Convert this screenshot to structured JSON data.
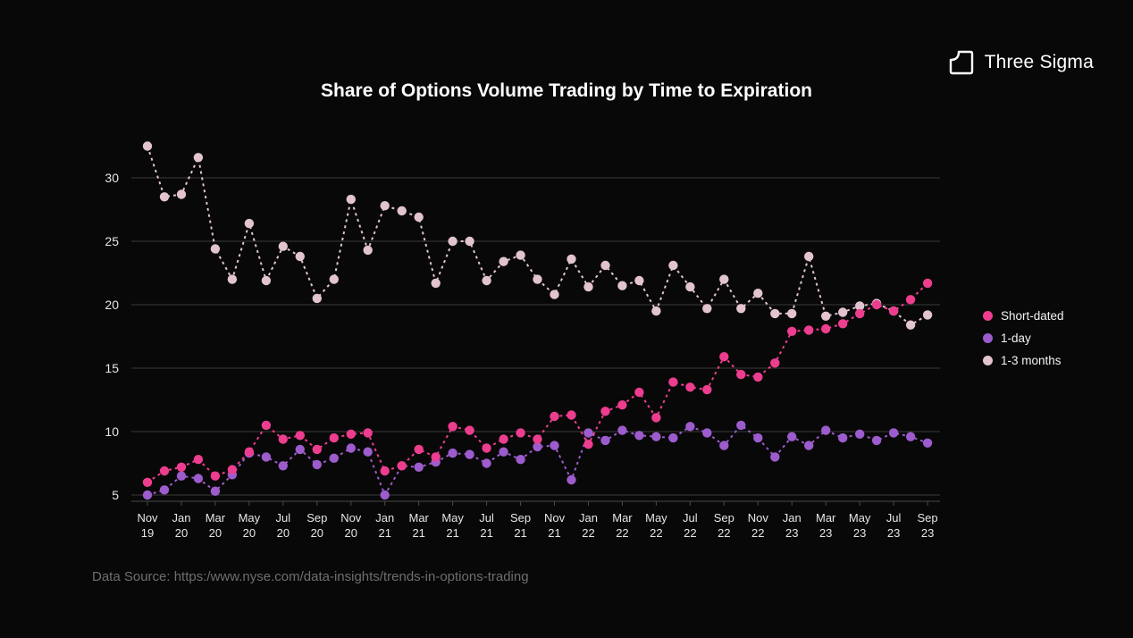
{
  "page": {
    "background": "#080808"
  },
  "logo": {
    "text": "Three Sigma"
  },
  "title": "Share of Options Volume Trading by Time to Expiration",
  "footer": {
    "text": "Data Source: https:/www.nyse.com/data-insights/trends-in-options-trading"
  },
  "colors": {
    "short_dated": "#ed3d8f",
    "one_day": "#9d5ccd",
    "one_three_months": "#e2c3d0",
    "grid": "#3a3a3a",
    "axis": "#4a4a4a",
    "tick_text": "#e6e6e6"
  },
  "chart_data": {
    "type": "line",
    "title": "Share of Options Volume Trading by Time to Expiration",
    "line_style": "dashed",
    "grid": "horizontal",
    "legend_position": "right",
    "ylim": [
      4.3,
      33.5
    ],
    "yticks": [
      5,
      10,
      15,
      20,
      25,
      30
    ],
    "xtick_every": 2,
    "x": [
      "Nov 19",
      "Dec 19",
      "Jan 20",
      "Feb 20",
      "Mar 20",
      "Apr 20",
      "May 20",
      "Jun 20",
      "Jul 20",
      "Aug 20",
      "Sep 20",
      "Oct 20",
      "Nov 20",
      "Dec 20",
      "Jan 21",
      "Feb 21",
      "Mar 21",
      "Apr 21",
      "May 21",
      "Jun 21",
      "Jul 21",
      "Aug 21",
      "Sep 21",
      "Oct 21",
      "Nov 21",
      "Dec 21",
      "Jan 22",
      "Feb 22",
      "Mar 22",
      "Apr 22",
      "May 22",
      "Jun 22",
      "Jul 22",
      "Aug 22",
      "Sep 22",
      "Oct 22",
      "Nov 22",
      "Dec 22",
      "Jan 23",
      "Feb 23",
      "Mar 23",
      "Apr 23",
      "May 23",
      "Jun 23",
      "Jul 23",
      "Aug 23",
      "Sep 23"
    ],
    "series": [
      {
        "name": "Short-dated",
        "color": "#ed3d8f",
        "values": [
          6.0,
          6.9,
          7.2,
          7.8,
          6.5,
          7.0,
          8.4,
          10.5,
          9.4,
          9.7,
          8.6,
          9.5,
          9.8,
          9.9,
          6.9,
          7.3,
          8.6,
          8.0,
          10.4,
          10.1,
          8.7,
          9.4,
          9.9,
          9.4,
          11.2,
          11.3,
          9.0,
          11.6,
          12.1,
          13.1,
          11.1,
          13.9,
          13.5,
          13.3,
          15.9,
          14.5,
          14.3,
          15.4,
          17.9,
          18.0,
          18.1,
          18.5,
          19.3,
          20.0,
          19.5,
          20.4,
          21.7
        ]
      },
      {
        "name": "1-day",
        "color": "#9d5ccd",
        "values": [
          5.0,
          5.4,
          6.5,
          6.3,
          5.3,
          6.6,
          8.3,
          8.0,
          7.3,
          8.6,
          7.4,
          7.9,
          8.7,
          8.4,
          5.0,
          7.3,
          7.2,
          7.6,
          8.3,
          8.2,
          7.5,
          8.4,
          7.8,
          8.8,
          8.9,
          6.2,
          9.9,
          9.3,
          10.1,
          9.7,
          9.6,
          9.5,
          10.4,
          9.9,
          8.9,
          10.5,
          9.5,
          8.0,
          9.6,
          8.9,
          10.1,
          9.5,
          9.8,
          9.3,
          9.9,
          9.6,
          9.1
        ]
      },
      {
        "name": "1-3 months",
        "color": "#e2c3d0",
        "values": [
          32.5,
          28.5,
          28.7,
          31.6,
          24.4,
          22.0,
          26.4,
          21.9,
          24.6,
          23.8,
          20.5,
          22.0,
          28.3,
          24.3,
          27.8,
          27.4,
          26.9,
          21.7,
          25.0,
          25.0,
          21.9,
          23.4,
          23.9,
          22.0,
          20.8,
          23.6,
          21.4,
          23.1,
          21.5,
          21.9,
          19.5,
          23.1,
          21.4,
          19.7,
          22.0,
          19.7,
          20.9,
          19.3,
          19.3,
          23.8,
          19.1,
          19.4,
          19.9,
          20.1,
          19.5,
          18.4,
          19.2
        ]
      }
    ]
  }
}
